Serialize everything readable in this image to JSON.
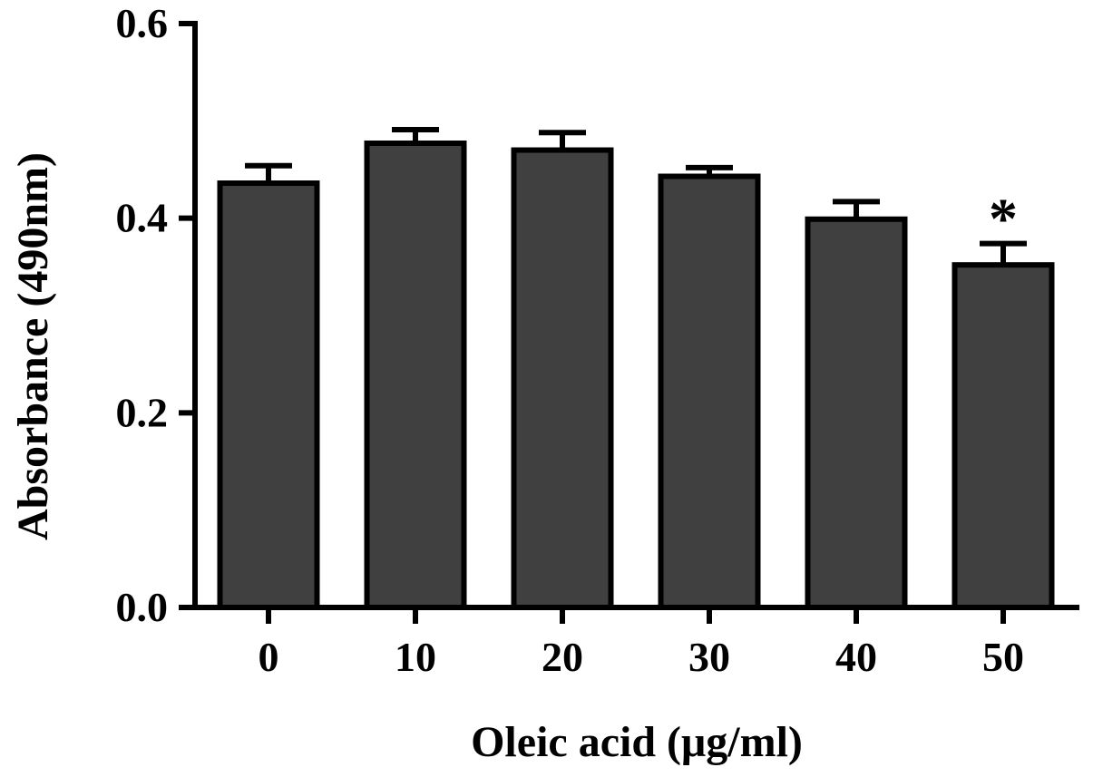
{
  "chart_data": {
    "type": "bar",
    "categories": [
      "0",
      "10",
      "20",
      "30",
      "40",
      "50"
    ],
    "series": [
      {
        "values": [
          0.436,
          0.477,
          0.47,
          0.443,
          0.399,
          0.352
        ],
        "errors": [
          0.018,
          0.014,
          0.018,
          0.009,
          0.018,
          0.022
        ]
      }
    ],
    "annotations": [
      {
        "category": "50",
        "text": "*"
      }
    ],
    "xlabel": "Oleic acid (μg/ml)",
    "ylabel": "Absorbance (490nm)",
    "ylim": [
      0,
      0.6
    ],
    "yticks": [
      "0.0",
      "0.2",
      "0.4",
      "0.6"
    ],
    "grid": false,
    "colors": {
      "bar_fill": "#404040",
      "stroke": "#000000"
    }
  }
}
